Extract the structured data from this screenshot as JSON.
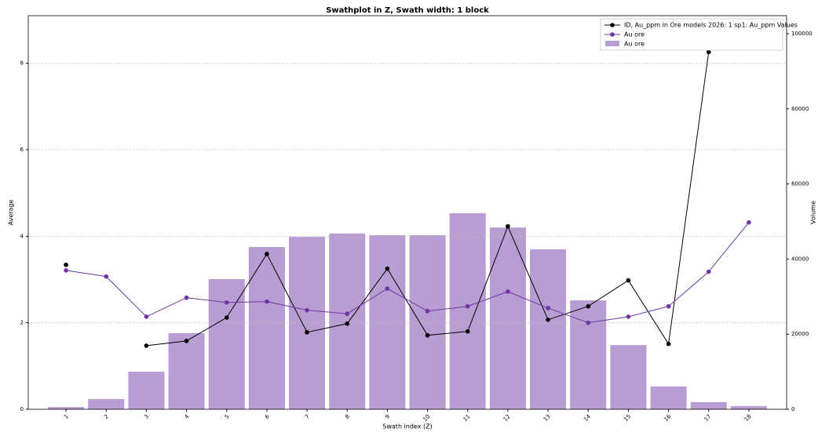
{
  "chart_data": {
    "type": "combo",
    "title": "Swathplot in Z, Swath width: 1 block",
    "x_label": "Swath index (Z)",
    "y_label": "Average",
    "y2_label": "Volume",
    "categories": [
      "1",
      "2",
      "3",
      "4",
      "5",
      "6",
      "7",
      "8",
      "9",
      "10",
      "11",
      "12",
      "13",
      "14",
      "15",
      "16",
      "17",
      "18"
    ],
    "ylim": [
      0,
      9.1
    ],
    "yticks": [
      0,
      2,
      4,
      6,
      8
    ],
    "y2lim": [
      0,
      104800
    ],
    "y2ticks": [
      0,
      20000,
      40000,
      60000,
      80000,
      100000
    ],
    "grid": true,
    "legend": "upper right",
    "series": [
      {
        "name": "ID, Au_ppm in Ore models 2026: 1 sp1: Au_ppm Values",
        "type": "line",
        "color": "#000000",
        "values": [
          3.34,
          null,
          1.47,
          1.58,
          2.12,
          3.59,
          1.78,
          1.98,
          3.25,
          1.71,
          1.8,
          4.23,
          2.07,
          2.38,
          2.98,
          1.51,
          8.26,
          null
        ]
      },
      {
        "name": "Au ore",
        "type": "line",
        "color": "#6f35a5",
        "values": [
          3.21,
          3.07,
          2.14,
          2.58,
          2.47,
          2.49,
          2.29,
          2.21,
          2.79,
          2.27,
          2.38,
          2.72,
          2.34,
          2.0,
          2.14,
          2.38,
          3.18,
          4.32
        ]
      },
      {
        "name": "Au ore",
        "type": "bar",
        "axis": "y2",
        "color": "#b79dd2",
        "values": [
          600,
          2700,
          10000,
          20250,
          34650,
          43200,
          45900,
          46800,
          46350,
          46350,
          52200,
          48400,
          42600,
          29000,
          17100,
          6050,
          1900,
          850
        ]
      }
    ]
  }
}
